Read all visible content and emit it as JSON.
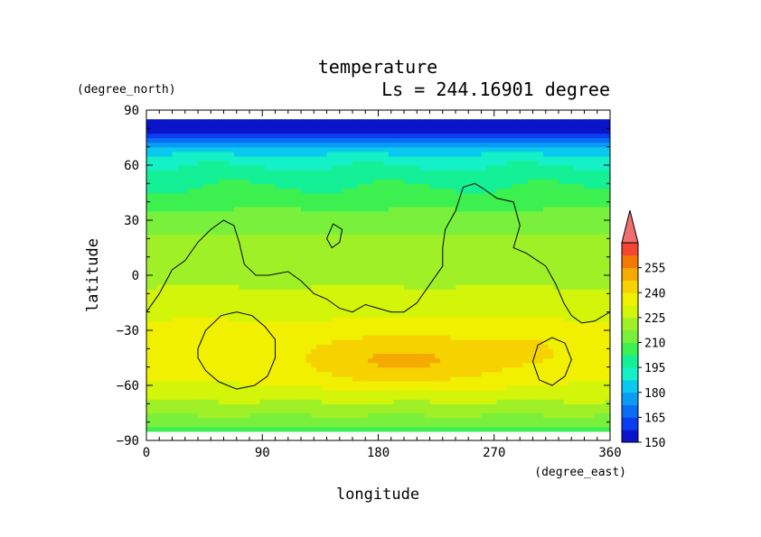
{
  "chart_data": {
    "type": "heatmap",
    "title": "temperature",
    "subtitle": "Ls = 244.16901 degree",
    "xlabel": "longitude",
    "ylabel": "latitude",
    "x_units": "(degree_east)",
    "y_units": "(degree_north)",
    "xlim": [
      0,
      360
    ],
    "ylim": [
      -90,
      90
    ],
    "data_lat_range": [
      -85,
      85
    ],
    "x_ticks": [
      0,
      90,
      180,
      270,
      360
    ],
    "y_ticks": [
      -90,
      -60,
      -30,
      0,
      30,
      60,
      90
    ],
    "x_tick_labels": [
      "0",
      "90",
      "180",
      "270",
      "360"
    ],
    "y_tick_labels": [
      "−90",
      "−60",
      "−30",
      "0",
      "30",
      "60",
      "90"
    ],
    "colorbar": {
      "levels": [
        142.5,
        150,
        157.5,
        165,
        172.5,
        180,
        187.5,
        195,
        202.5,
        210,
        217.5,
        225,
        232.5,
        240,
        247.5,
        255,
        262.5
      ],
      "labels": [
        "150",
        "165",
        "180",
        "195",
        "210",
        "225",
        "240",
        "255"
      ],
      "colors": [
        "#0a14c8",
        "#0a3cf0",
        "#0a6ef5",
        "#0a9bf5",
        "#0ac8f0",
        "#14f0c8",
        "#14f096",
        "#3cf050",
        "#78f03c",
        "#a0f028",
        "#d2f50a",
        "#f0f000",
        "#f5d200",
        "#f5aa00",
        "#f57800",
        "#f54632",
        "#f06e6e"
      ]
    },
    "zonal_mean_profile": {
      "lat": [
        -85,
        -80,
        -75,
        -70,
        -65,
        -60,
        -55,
        -50,
        -45,
        -40,
        -35,
        -30,
        -25,
        -20,
        -15,
        -10,
        -5,
        0,
        5,
        10,
        15,
        20,
        25,
        30,
        35,
        40,
        45,
        50,
        55,
        60,
        65,
        70,
        75,
        80,
        85
      ],
      "temperature": [
        200,
        206,
        211,
        216,
        220,
        224,
        226,
        227,
        228,
        228,
        228,
        227,
        225,
        223,
        221,
        219,
        217,
        215,
        214,
        213,
        212,
        211,
        209,
        206,
        203,
        200,
        197,
        194,
        191,
        187,
        182,
        172,
        157,
        146,
        143
      ]
    },
    "warm_anomaly": [
      {
        "lon": 200,
        "lat": -47,
        "amp": 14,
        "lon_width": 75,
        "lat_width": 14
      },
      {
        "lon": 300,
        "lat": -40,
        "amp": 4,
        "lon_width": 40,
        "lat_width": 12
      },
      {
        "lon": 40,
        "lat": -32,
        "amp": 3,
        "lon_width": 25,
        "lat_width": 8
      }
    ],
    "topography_contours": [
      [
        [
          0,
          -20
        ],
        [
          10,
          -10
        ],
        [
          20,
          3
        ],
        [
          30,
          8
        ],
        [
          40,
          18
        ],
        [
          50,
          25
        ],
        [
          60,
          30
        ],
        [
          68,
          27
        ],
        [
          72,
          18
        ],
        [
          76,
          6
        ],
        [
          85,
          0
        ],
        [
          95,
          0
        ],
        [
          110,
          2
        ],
        [
          120,
          -3
        ],
        [
          130,
          -10
        ],
        [
          140,
          -13
        ],
        [
          150,
          -18
        ],
        [
          160,
          -20
        ],
        [
          170,
          -16
        ],
        [
          180,
          -18
        ],
        [
          190,
          -20
        ],
        [
          200,
          -20
        ],
        [
          210,
          -15
        ],
        [
          220,
          -5
        ],
        [
          230,
          5
        ],
        [
          230,
          15
        ],
        [
          232,
          25
        ],
        [
          240,
          35
        ],
        [
          246,
          48
        ],
        [
          255,
          50
        ],
        [
          262,
          47
        ],
        [
          272,
          42
        ],
        [
          285,
          40
        ],
        [
          290,
          27
        ],
        [
          285,
          15
        ],
        [
          295,
          12
        ],
        [
          310,
          5
        ],
        [
          318,
          -5
        ],
        [
          324,
          -15
        ],
        [
          330,
          -22
        ],
        [
          338,
          -26
        ],
        [
          348,
          -25
        ],
        [
          360,
          -20
        ]
      ],
      [
        [
          140,
          20
        ],
        [
          145,
          28
        ],
        [
          152,
          25
        ],
        [
          150,
          18
        ],
        [
          144,
          15
        ],
        [
          140,
          20
        ]
      ],
      [
        [
          40,
          -40
        ],
        [
          46,
          -30
        ],
        [
          58,
          -22
        ],
        [
          70,
          -20
        ],
        [
          82,
          -22
        ],
        [
          92,
          -28
        ],
        [
          100,
          -35
        ],
        [
          100,
          -45
        ],
        [
          94,
          -55
        ],
        [
          84,
          -60
        ],
        [
          70,
          -62
        ],
        [
          56,
          -58
        ],
        [
          46,
          -52
        ],
        [
          40,
          -45
        ],
        [
          40,
          -40
        ]
      ],
      [
        [
          300,
          -47
        ],
        [
          304,
          -38
        ],
        [
          315,
          -34
        ],
        [
          325,
          -37
        ],
        [
          330,
          -46
        ],
        [
          325,
          -55
        ],
        [
          315,
          -60
        ],
        [
          305,
          -57
        ],
        [
          300,
          -47
        ]
      ]
    ],
    "grid": false,
    "legend": "colorbar-right"
  }
}
